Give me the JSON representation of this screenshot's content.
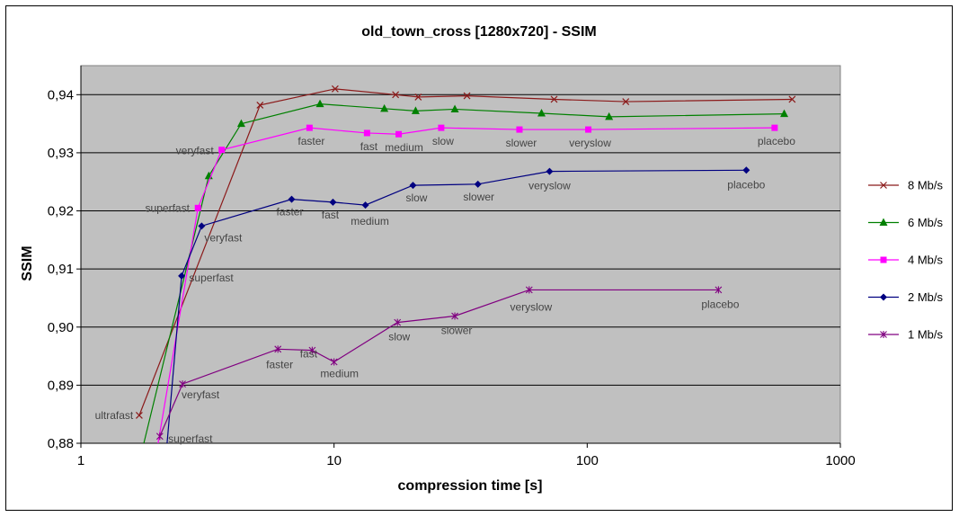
{
  "chart_data": {
    "type": "line",
    "title": "old_town_cross [1280x720] - SSIM",
    "xlabel": "compression time [s]",
    "ylabel": "SSIM",
    "x_scale": "log",
    "xlim": [
      1,
      1000
    ],
    "ylim": [
      0.88,
      0.945
    ],
    "x_ticks": [
      1,
      10,
      100,
      1000
    ],
    "x_tick_labels": [
      "1",
      "10",
      "100",
      "1000"
    ],
    "y_ticks": [
      0.88,
      0.89,
      0.9,
      0.91,
      0.92,
      0.93,
      0.94
    ],
    "y_tick_labels": [
      "0,88",
      "0,89",
      "0,90",
      "0,91",
      "0,92",
      "0,93",
      "0,94"
    ],
    "grid": "horizontal",
    "plot_background": "#c0c0c0",
    "legend_position": "right",
    "series": [
      {
        "name": "8 Mb/s",
        "color": "#8b1a1a",
        "marker": "x",
        "points": [
          {
            "x": 1.7,
            "y": 0.8848,
            "label": "ultrafast"
          },
          {
            "x": 5.1,
            "y": 0.9382,
            "label": ""
          },
          {
            "x": 10.1,
            "y": 0.941,
            "label": ""
          },
          {
            "x": 17.5,
            "y": 0.94,
            "label": ""
          },
          {
            "x": 21.5,
            "y": 0.9396,
            "label": ""
          },
          {
            "x": 33.5,
            "y": 0.9398,
            "label": ""
          },
          {
            "x": 74,
            "y": 0.9392,
            "label": ""
          },
          {
            "x": 142,
            "y": 0.9388,
            "label": ""
          },
          {
            "x": 645,
            "y": 0.9392,
            "label": ""
          }
        ]
      },
      {
        "name": "6 Mb/s",
        "color": "#008000",
        "marker": "triangle",
        "points": [
          {
            "x": 1.75,
            "y": 0.879,
            "label": ""
          },
          {
            "x": 3.2,
            "y": 0.926,
            "label": ""
          },
          {
            "x": 4.3,
            "y": 0.935,
            "label": ""
          },
          {
            "x": 8.8,
            "y": 0.9384,
            "label": ""
          },
          {
            "x": 15.8,
            "y": 0.9376,
            "label": ""
          },
          {
            "x": 21.0,
            "y": 0.9372,
            "label": ""
          },
          {
            "x": 30.0,
            "y": 0.9375,
            "label": ""
          },
          {
            "x": 66,
            "y": 0.9368,
            "label": ""
          },
          {
            "x": 122,
            "y": 0.9362,
            "label": ""
          },
          {
            "x": 600,
            "y": 0.9367,
            "label": ""
          }
        ]
      },
      {
        "name": "4 Mb/s",
        "color": "#ff00ff",
        "marker": "square",
        "points": [
          {
            "x": 2.0,
            "y": 0.879,
            "label": ""
          },
          {
            "x": 2.9,
            "y": 0.9205,
            "label": "superfast"
          },
          {
            "x": 3.6,
            "y": 0.9305,
            "label": "veryfast"
          },
          {
            "x": 8.0,
            "y": 0.9343,
            "label": "faster"
          },
          {
            "x": 13.5,
            "y": 0.9334,
            "label": "fast"
          },
          {
            "x": 18.0,
            "y": 0.9332,
            "label": "medium"
          },
          {
            "x": 26.5,
            "y": 0.9343,
            "label": "slow"
          },
          {
            "x": 54,
            "y": 0.934,
            "label": "slower"
          },
          {
            "x": 101,
            "y": 0.934,
            "label": "veryslow"
          },
          {
            "x": 550,
            "y": 0.9343,
            "label": "placebo"
          }
        ]
      },
      {
        "name": "2 Mb/s",
        "color": "#000080",
        "marker": "diamond",
        "points": [
          {
            "x": 2.18,
            "y": 0.879,
            "label": ""
          },
          {
            "x": 2.5,
            "y": 0.9088,
            "label": "superfast"
          },
          {
            "x": 3.0,
            "y": 0.9174,
            "label": "veryfast"
          },
          {
            "x": 6.8,
            "y": 0.922,
            "label": "faster"
          },
          {
            "x": 9.9,
            "y": 0.9215,
            "label": "fast"
          },
          {
            "x": 13.3,
            "y": 0.921,
            "label": "medium"
          },
          {
            "x": 20.5,
            "y": 0.9244,
            "label": "slow"
          },
          {
            "x": 37.0,
            "y": 0.9246,
            "label": "slower"
          },
          {
            "x": 71,
            "y": 0.9268,
            "label": "veryslow"
          },
          {
            "x": 425,
            "y": 0.927,
            "label": "placebo"
          }
        ]
      },
      {
        "name": "1 Mb/s",
        "color": "#800080",
        "marker": "asterisk",
        "points": [
          {
            "x": 2.05,
            "y": 0.8812,
            "label": "superfast"
          },
          {
            "x": 2.52,
            "y": 0.8902,
            "label": "veryfast"
          },
          {
            "x": 6.0,
            "y": 0.8962,
            "label": "faster"
          },
          {
            "x": 8.2,
            "y": 0.896,
            "label": "fast"
          },
          {
            "x": 10.0,
            "y": 0.894,
            "label": "medium"
          },
          {
            "x": 17.8,
            "y": 0.9008,
            "label": "slow"
          },
          {
            "x": 30.0,
            "y": 0.9019,
            "label": "slower"
          },
          {
            "x": 59,
            "y": 0.9064,
            "label": "veryslow"
          },
          {
            "x": 330,
            "y": 0.9064,
            "label": "placebo"
          }
        ]
      }
    ]
  }
}
